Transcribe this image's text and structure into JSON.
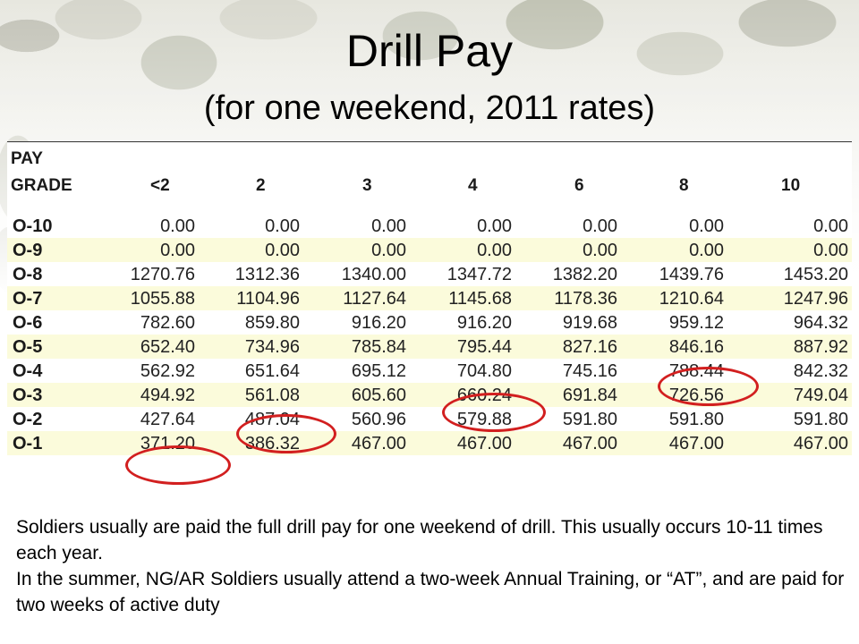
{
  "slide": {
    "title": "Drill Pay",
    "subtitle": "(for one weekend, 2011 rates)"
  },
  "table": {
    "label_line1": "PAY",
    "label_line2": "GRADE",
    "columns": [
      "<2",
      "2",
      "3",
      "4",
      "6",
      "8",
      "10"
    ],
    "rows": [
      {
        "grade": "O-10",
        "values": [
          "0.00",
          "0.00",
          "0.00",
          "0.00",
          "0.00",
          "0.00",
          "0.00"
        ]
      },
      {
        "grade": "O-9",
        "values": [
          "0.00",
          "0.00",
          "0.00",
          "0.00",
          "0.00",
          "0.00",
          "0.00"
        ]
      },
      {
        "grade": "O-8",
        "values": [
          "1270.76",
          "1312.36",
          "1340.00",
          "1347.72",
          "1382.20",
          "1439.76",
          "1453.20"
        ]
      },
      {
        "grade": "O-7",
        "values": [
          "1055.88",
          "1104.96",
          "1127.64",
          "1145.68",
          "1178.36",
          "1210.64",
          "1247.96"
        ]
      },
      {
        "grade": "O-6",
        "values": [
          "782.60",
          "859.80",
          "916.20",
          "916.20",
          "919.68",
          "959.12",
          "964.32"
        ]
      },
      {
        "grade": "O-5",
        "values": [
          "652.40",
          "734.96",
          "785.84",
          "795.44",
          "827.16",
          "846.16",
          "887.92"
        ]
      },
      {
        "grade": "O-4",
        "values": [
          "562.92",
          "651.64",
          "695.12",
          "704.80",
          "745.16",
          "788.44",
          "842.32"
        ]
      },
      {
        "grade": "O-3",
        "values": [
          "494.92",
          "561.08",
          "605.60",
          "660.24",
          "691.84",
          "726.56",
          "749.04"
        ]
      },
      {
        "grade": "O-2",
        "values": [
          "427.64",
          "487.04",
          "560.96",
          "579.88",
          "591.80",
          "591.80",
          "591.80"
        ]
      },
      {
        "grade": "O-1",
        "values": [
          "371.20",
          "386.32",
          "467.00",
          "467.00",
          "467.00",
          "467.00",
          "467.00"
        ]
      }
    ],
    "highlight_color": "#d21f1f"
  },
  "caption": {
    "para1": "Soldiers usually are paid the full drill pay for one weekend of drill.  This usually occurs 10-11 times each year.",
    "para2": "In the summer, NG/AR Soldiers usually attend a two-week Annual Training, or “AT”, and are paid for two weeks of active duty"
  }
}
